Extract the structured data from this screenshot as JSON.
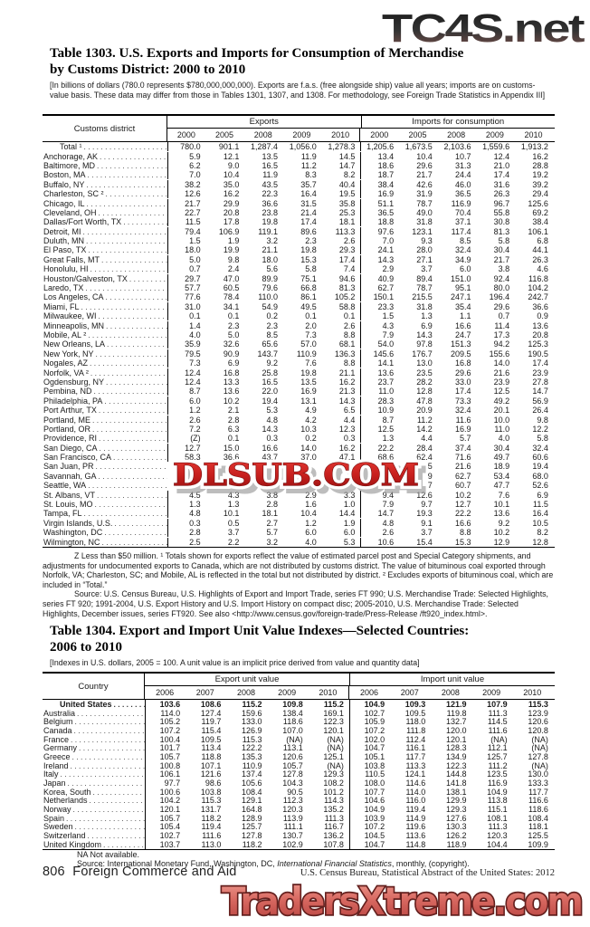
{
  "watermarks": {
    "top": "TC4S.net",
    "middle": "DLSUB.COM",
    "bottom": "TradersXtreme.com",
    "red": "#c42222",
    "salmon": "#cf6a62"
  },
  "t1303": {
    "title1": "Table 1303. U.S. Exports and Imports for Consumption of Merchandise",
    "title2": "by Customs District: 2000 to 2010",
    "note": "[In billions of dollars (780.0 represents $780,000,000,000). Exports are f.a.s. (free alongside ship) value all years; imports are on customs-value basis. These data may differ from those in Tables 1301, 1307, and 1308. For methodology, see Foreign Trade Statistics in Appendix III]",
    "stub_header": "Customs district",
    "group1": "Exports",
    "group2": "Imports for consumption",
    "years": [
      "2000",
      "2005",
      "2008",
      "2009",
      "2010",
      "2000",
      "2005",
      "2008",
      "2009",
      "2010"
    ],
    "rows": [
      {
        "label": "Total ¹",
        "indent": true,
        "values": [
          "780.0",
          "901.1",
          "1,287.4",
          "1,056.0",
          "1,278.3",
          "1,205.6",
          "1,673.5",
          "2,103.6",
          "1,559.6",
          "1,913.2"
        ]
      },
      {
        "label": "Anchorage, AK",
        "values": [
          "5.9",
          "12.1",
          "13.5",
          "11.9",
          "14.5",
          "13.4",
          "10.4",
          "10.7",
          "12.4",
          "16.2"
        ]
      },
      {
        "label": "Baltimore, MD",
        "values": [
          "6.2",
          "9.0",
          "16.5",
          "11.2",
          "14.7",
          "18.6",
          "29.6",
          "31.3",
          "21.0",
          "28.8"
        ]
      },
      {
        "label": "Boston, MA",
        "values": [
          "7.0",
          "10.4",
          "11.9",
          "8.3",
          "8.2",
          "18.7",
          "21.7",
          "24.4",
          "17.4",
          "19.2"
        ]
      },
      {
        "label": "Buffalo, NY",
        "values": [
          "38.2",
          "35.0",
          "43.5",
          "35.7",
          "40.4",
          "38.4",
          "42.6",
          "46.0",
          "31.6",
          "39.2"
        ]
      },
      {
        "label": "Charleston, SC ²",
        "values": [
          "12.6",
          "16.2",
          "22.3",
          "16.4",
          "19.5",
          "16.9",
          "31.9",
          "36.5",
          "26.3",
          "29.4"
        ]
      },
      {
        "label": "Chicago, IL",
        "values": [
          "21.7",
          "29.9",
          "36.6",
          "31.5",
          "35.8",
          "51.1",
          "78.7",
          "116.9",
          "96.7",
          "125.6"
        ]
      },
      {
        "label": "Cleveland, OH",
        "values": [
          "22.7",
          "20.8",
          "23.8",
          "21.4",
          "25.3",
          "36.5",
          "49.0",
          "70.4",
          "55.8",
          "69.2"
        ]
      },
      {
        "label": "Dallas/Fort Worth, TX",
        "values": [
          "11.5",
          "17.8",
          "19.8",
          "17.4",
          "18.1",
          "18.8",
          "31.8",
          "37.1",
          "30.8",
          "38.4"
        ]
      },
      {
        "label": "Detroit, MI",
        "values": [
          "79.4",
          "106.9",
          "119.1",
          "89.6",
          "113.3",
          "97.6",
          "123.1",
          "117.4",
          "81.3",
          "106.1"
        ]
      },
      {
        "label": "Duluth, MN",
        "values": [
          "1.5",
          "1.9",
          "3.2",
          "2.3",
          "2.6",
          "7.0",
          "9.3",
          "8.5",
          "5.8",
          "6.8"
        ]
      },
      {
        "label": "El Paso, TX",
        "values": [
          "18.0",
          "19.9",
          "21.1",
          "19.8",
          "29.3",
          "24.1",
          "28.0",
          "32.4",
          "30.4",
          "44.1"
        ]
      },
      {
        "label": "Great Falls, MT",
        "values": [
          "5.0",
          "9.8",
          "18.0",
          "15.3",
          "17.4",
          "14.3",
          "27.1",
          "34.9",
          "21.7",
          "26.3"
        ]
      },
      {
        "label": "Honolulu, HI",
        "values": [
          "0.7",
          "2.4",
          "5.6",
          "5.8",
          "7.4",
          "2.9",
          "3.7",
          "6.0",
          "3.8",
          "4.6"
        ]
      },
      {
        "label": "Houston/Galveston, TX",
        "values": [
          "29.7",
          "47.0",
          "89.9",
          "75.1",
          "94.6",
          "40.9",
          "89.4",
          "151.0",
          "92.4",
          "116.8"
        ]
      },
      {
        "label": "Laredo, TX",
        "values": [
          "57.7",
          "60.5",
          "79.6",
          "66.8",
          "81.3",
          "62.7",
          "78.7",
          "95.1",
          "80.0",
          "104.2"
        ]
      },
      {
        "label": "Los Angeles, CA",
        "values": [
          "77.6",
          "78.4",
          "110.0",
          "86.1",
          "105.2",
          "150.1",
          "215.5",
          "247.1",
          "196.4",
          "242.7"
        ]
      },
      {
        "label": "Miami, FL",
        "values": [
          "31.0",
          "34.1",
          "54.9",
          "49.5",
          "58.8",
          "23.3",
          "31.8",
          "35.4",
          "29.6",
          "36.6"
        ]
      },
      {
        "label": "Milwaukee, WI",
        "values": [
          "0.1",
          "0.1",
          "0.2",
          "0.1",
          "0.1",
          "1.5",
          "1.3",
          "1.1",
          "0.7",
          "0.9"
        ]
      },
      {
        "label": "Minneapolis, MN",
        "values": [
          "1.4",
          "2.3",
          "2.3",
          "2.0",
          "2.6",
          "4.3",
          "6.9",
          "16.6",
          "11.4",
          "13.6"
        ]
      },
      {
        "label": "Mobile, AL ²",
        "values": [
          "4.0",
          "5.0",
          "8.5",
          "7.3",
          "8.8",
          "7.9",
          "14.3",
          "24.7",
          "17.3",
          "20.8"
        ]
      },
      {
        "label": "New Orleans, LA",
        "values": [
          "35.9",
          "32.6",
          "65.6",
          "57.0",
          "68.1",
          "54.0",
          "97.8",
          "151.3",
          "94.2",
          "125.3"
        ]
      },
      {
        "label": "New York, NY",
        "values": [
          "79.5",
          "90.9",
          "143.7",
          "110.9",
          "136.3",
          "145.6",
          "176.7",
          "209.5",
          "155.6",
          "190.5"
        ]
      },
      {
        "label": "Nogales, AZ",
        "values": [
          "7.3",
          "6.9",
          "9.2",
          "7.6",
          "8.8",
          "14.1",
          "13.0",
          "16.8",
          "14.0",
          "17.4"
        ]
      },
      {
        "label": "Norfolk, VA ²",
        "values": [
          "12.4",
          "16.8",
          "25.8",
          "19.8",
          "21.1",
          "13.6",
          "23.5",
          "29.6",
          "21.6",
          "23.9"
        ]
      },
      {
        "label": "Ogdensburg, NY",
        "values": [
          "12.4",
          "13.3",
          "16.5",
          "13.5",
          "16.2",
          "23.7",
          "28.2",
          "33.0",
          "23.9",
          "27.8"
        ]
      },
      {
        "label": "Pembina, ND",
        "values": [
          "8.7",
          "13.6",
          "22.0",
          "16.9",
          "21.3",
          "11.0",
          "12.8",
          "17.4",
          "12.5",
          "14.7"
        ]
      },
      {
        "label": "Philadelphia, PA",
        "values": [
          "6.0",
          "10.2",
          "19.4",
          "13.1",
          "14.3",
          "28.3",
          "47.8",
          "73.3",
          "49.2",
          "56.9"
        ]
      },
      {
        "label": "Port Arthur, TX",
        "values": [
          "1.2",
          "2.1",
          "5.3",
          "4.9",
          "6.5",
          "10.9",
          "20.9",
          "32.4",
          "20.1",
          "26.4"
        ]
      },
      {
        "label": "Portland, ME",
        "values": [
          "2.6",
          "2.8",
          "4.8",
          "4.2",
          "4.4",
          "8.7",
          "11.2",
          "11.6",
          "10.0",
          "9.8"
        ]
      },
      {
        "label": "Portland, OR",
        "values": [
          "7.2",
          "6.3",
          "14.3",
          "10.3",
          "12.3",
          "12.5",
          "14.2",
          "16.9",
          "11.0",
          "12.2"
        ]
      },
      {
        "label": "Providence, RI",
        "values": [
          "(Z)",
          "0.1",
          "0.3",
          "0.2",
          "0.3",
          "1.3",
          "4.4",
          "5.7",
          "4.0",
          "5.8"
        ]
      },
      {
        "label": "San Diego, CA",
        "values": [
          "12.7",
          "15.0",
          "16.6",
          "14.0",
          "16.2",
          "22.2",
          "28.4",
          "37.4",
          "30.4",
          "32.4"
        ]
      },
      {
        "label": "San Francisco, CA",
        "values": [
          "58.3",
          "36.6",
          "43.7",
          "37.0",
          "47.1",
          "68.6",
          "62.4",
          "71.6",
          "49.7",
          "60.6"
        ]
      },
      {
        "label": "San Juan, PR",
        "values": [
          "",
          "",
          "",
          "",
          "",
          "",
          "5",
          "21.6",
          "18.9",
          "19.4"
        ]
      },
      {
        "label": "Savannah, GA",
        "values": [
          "",
          "",
          "",
          "",
          "",
          "",
          "9",
          "62.7",
          "53.4",
          "68.0"
        ]
      },
      {
        "label": "Seattle, WA",
        "values": [
          "",
          "",
          "",
          "",
          "",
          "",
          "7",
          "60.7",
          "47.7",
          "52.6"
        ]
      },
      {
        "label": "St. Albans, VT",
        "values": [
          "4.5",
          "4.3",
          "3.8",
          "2.9",
          "3.3",
          "9.4",
          "12.6",
          "10.2",
          "7.6",
          "6.9"
        ]
      },
      {
        "label": "St. Louis, MO",
        "values": [
          "1.3",
          "1.3",
          "2.8",
          "1.6",
          "1.0",
          "7.9",
          "9.7",
          "12.7",
          "10.1",
          "11.5"
        ]
      },
      {
        "label": "Tampa, FL",
        "values": [
          "4.8",
          "10.1",
          "18.1",
          "10.4",
          "14.4",
          "14.7",
          "19.3",
          "22.2",
          "13.6",
          "16.4"
        ]
      },
      {
        "label": "Virgin Islands, U.S.",
        "values": [
          "0.3",
          "0.5",
          "2.7",
          "1.2",
          "1.9",
          "4.8",
          "9.1",
          "16.6",
          "9.2",
          "10.5"
        ]
      },
      {
        "label": "Washington, DC",
        "values": [
          "2.8",
          "3.7",
          "5.7",
          "6.0",
          "6.0",
          "2.6",
          "3.7",
          "8.8",
          "10.2",
          "8.2"
        ]
      },
      {
        "label": "Wilmington, NC",
        "values": [
          "2.5",
          "2.2",
          "3.2",
          "4.0",
          "5.3",
          "10.6",
          "15.4",
          "15.3",
          "12.9",
          "12.8"
        ]
      }
    ]
  },
  "fn1303": {
    "footnote": "Z Less than $50 million. ¹ Totals shown for exports reflect the value of estimated parcel post and Special Category shipments, and adjustments for undocumented exports to Canada, which are not distributed by customs district. The value of bituminous coal exported through Norfolk, VA; Charleston, SC; and Mobile, AL is reflected in the total but not distributed by district. ² Excludes exports of bituminous coal, which are included in “Total.”",
    "source": "Source: U.S. Census Bureau, U.S. Highlights of Export and Import Trade, series FT 990;  U.S. Merchandise Trade: Selected Highlights, series FT 920;  1991-2004, U.S. Export History and U.S. Import History on compact disc; 2005-2010, U.S. Merchandise Trade: Selected Highlights, December issues, series FT920. See also  <http://www.census.gov/foreign-trade/Press-Release /ft920_index.html>."
  },
  "t1304": {
    "title1": "Table 1304. Export and Import Unit Value Indexes—Selected Countries:",
    "title2": "2006 to 2010",
    "note": "[Indexes in U.S. dollars, 2005 = 100. A unit value is an implicit price derived from value and quantity data]",
    "stub_header": "Country",
    "group1": "Export unit value",
    "group2": "Import unit value",
    "years": [
      "2006",
      "2007",
      "2008",
      "2009",
      "2010",
      "2006",
      "2007",
      "2008",
      "2009",
      "2010"
    ],
    "rows": [
      {
        "label": "United States",
        "bold": true,
        "indent": true,
        "values": [
          "103.6",
          "108.6",
          "115.2",
          "109.8",
          "115.2",
          "104.9",
          "109.3",
          "121.9",
          "107.9",
          "115.3"
        ]
      },
      {
        "label": "Australia",
        "values": [
          "114.0",
          "127.4",
          "159.6",
          "138.4",
          "169.1",
          "102.7",
          "109.5",
          "119.8",
          "111.3",
          "123.9"
        ]
      },
      {
        "label": "Belgium",
        "values": [
          "105.2",
          "119.7",
          "133.0",
          "118.6",
          "122.3",
          "105.9",
          "118.0",
          "132.7",
          "114.5",
          "120.6"
        ]
      },
      {
        "label": "Canada",
        "values": [
          "107.2",
          "115.4",
          "126.9",
          "107.0",
          "120.1",
          "107.2",
          "111.8",
          "120.0",
          "111.6",
          "120.8"
        ]
      },
      {
        "label": "France",
        "values": [
          "100.4",
          "109.5",
          "115.3",
          "(NA)",
          "(NA)",
          "102.0",
          "112.4",
          "120.1",
          "(NA)",
          "(NA)"
        ]
      },
      {
        "label": "Germany",
        "values": [
          "101.7",
          "113.4",
          "122.2",
          "113.1",
          "(NA)",
          "104.7",
          "116.1",
          "128.3",
          "112.1",
          "(NA)"
        ]
      },
      {
        "label": "Greece",
        "values": [
          "105.7",
          "118.8",
          "135.3",
          "120.6",
          "125.1",
          "105.1",
          "117.7",
          "134.9",
          "125.7",
          "127.8"
        ]
      },
      {
        "label": "Ireland",
        "values": [
          "100.8",
          "107.1",
          "110.9",
          "105.7",
          "(NA)",
          "103.8",
          "113.3",
          "122.3",
          "111.2",
          "(NA)"
        ]
      },
      {
        "label": "Italy",
        "values": [
          "106.1",
          "121.6",
          "137.4",
          "127.8",
          "129.3",
          "110.5",
          "124.1",
          "144.8",
          "123.5",
          "130.0"
        ]
      },
      {
        "label": "Japan",
        "values": [
          "97.7",
          "98.6",
          "105.6",
          "104.3",
          "108.2",
          "108.0",
          "114.6",
          "141.8",
          "116.9",
          "133.3"
        ]
      },
      {
        "label": "Korea, South",
        "values": [
          "100.6",
          "103.8",
          "108.4",
          "90.5",
          "101.2",
          "107.7",
          "114.0",
          "138.1",
          "104.9",
          "117.7"
        ]
      },
      {
        "label": "Netherlands",
        "values": [
          "104.2",
          "115.3",
          "129.1",
          "112.3",
          "114.3",
          "104.6",
          "116.0",
          "129.9",
          "113.8",
          "116.6"
        ]
      },
      {
        "label": "Norway",
        "values": [
          "120.1",
          "131.7",
          "164.8",
          "120.3",
          "135.2",
          "104.9",
          "119.4",
          "129.3",
          "115.1",
          "118.6"
        ]
      },
      {
        "label": "Spain",
        "values": [
          "105.7",
          "118.2",
          "128.9",
          "113.9",
          "111.3",
          "103.9",
          "114.9",
          "127.6",
          "108.1",
          "108.4"
        ]
      },
      {
        "label": "Sweden",
        "values": [
          "105.4",
          "119.4",
          "125.7",
          "111.1",
          "116.7",
          "107.2",
          "119.6",
          "130.3",
          "111.3",
          "118.1"
        ]
      },
      {
        "label": "Switzerland",
        "values": [
          "102.7",
          "111.6",
          "127.8",
          "130.7",
          "136.2",
          "104.5",
          "113.6",
          "126.2",
          "120.3",
          "125.5"
        ]
      },
      {
        "label": "United Kingdom",
        "values": [
          "103.7",
          "113.0",
          "118.2",
          "102.9",
          "107.8",
          "104.7",
          "114.8",
          "118.9",
          "104.4",
          "109.9"
        ]
      }
    ]
  },
  "notes1304": {
    "na": "NA Not available.",
    "src_pre": "Source: International Monetary Fund, Washington, DC, ",
    "src_it": "International Financial Statistics",
    "src_post": ", monthly, (copyright)."
  },
  "footer": {
    "page": "806",
    "section": "Foreign Commerce and Aid",
    "credit": "U.S. Census Bureau, Statistical Abstract of the United States: 2012"
  }
}
